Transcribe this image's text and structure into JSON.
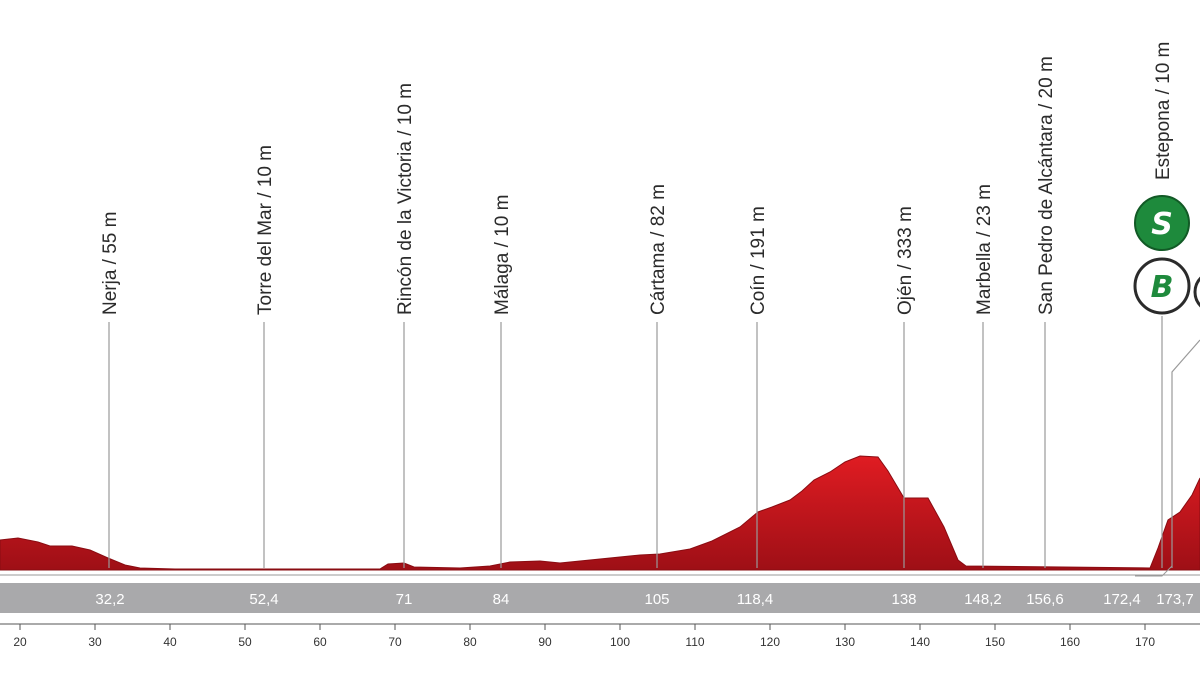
{
  "towns": [
    {
      "name": "Nerja / 55 m",
      "km": 32.2
    },
    {
      "name": "Torre del Mar / 10 m",
      "km": 52.4
    },
    {
      "name": "Rincón de la Victoria / 10 m",
      "km": 71
    },
    {
      "name": "Málaga / 10 m",
      "km": 84
    },
    {
      "name": "Cártama / 82 m",
      "km": 105
    },
    {
      "name": "Coín / 191 m",
      "km": 118.4
    },
    {
      "name": "Ojén / 333 m",
      "km": 138
    },
    {
      "name": "Marbella / 23 m",
      "km": 148.2
    },
    {
      "name": "San Pedro de Alcántara / 20 m",
      "km": 156.6
    },
    {
      "name": "Estepona / 10 m",
      "km": 173.7
    }
  ],
  "km_band": [
    "32,2",
    "52,4",
    "71",
    "84",
    "105",
    "118,4",
    "138",
    "148,2",
    "156,6",
    "172,4",
    "173,7"
  ],
  "axis_ticks": [
    "20",
    "30",
    "40",
    "50",
    "60",
    "70",
    "80",
    "90",
    "100",
    "110",
    "120",
    "130",
    "140",
    "150",
    "160",
    "170"
  ],
  "badges": [
    {
      "letter": "S",
      "type": "sprint",
      "color": "#1e8a3c"
    },
    {
      "letter": "B",
      "type": "bonus",
      "color": "#1e8a3c"
    }
  ],
  "colors": {
    "profile": "#c8141c",
    "band": "#a9a9ab",
    "leader": "#9a9a9a"
  }
}
